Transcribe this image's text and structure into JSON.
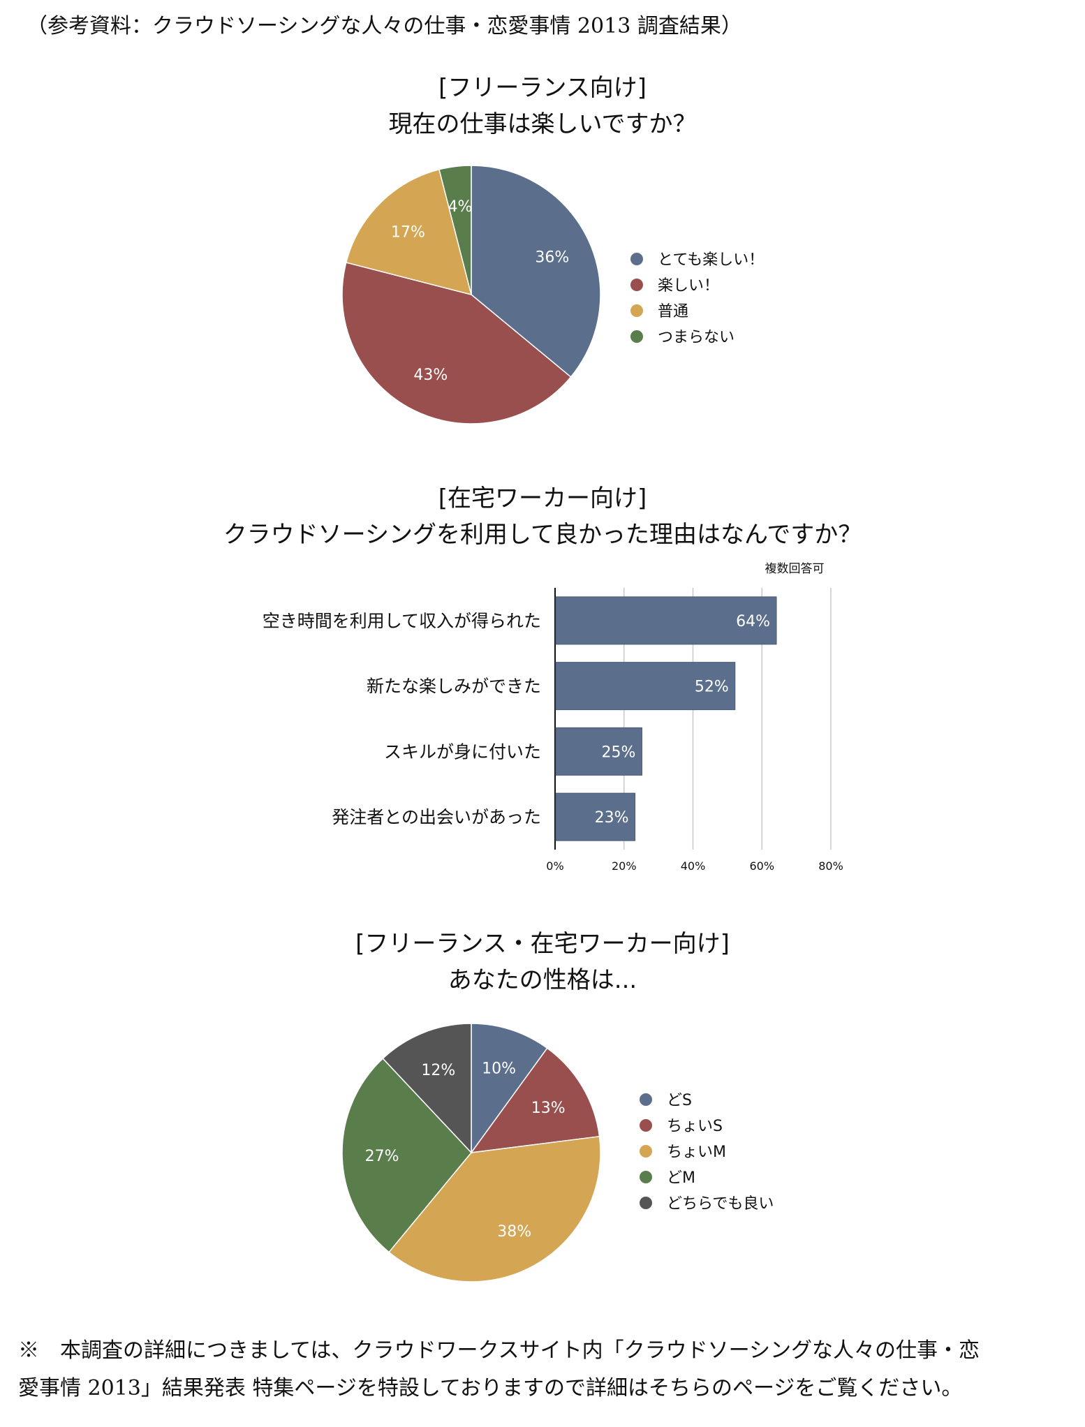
{
  "reference_title": "（参考資料：クラウドソーシングな人々の仕事・恋愛事情 2013 調査結果）",
  "chart_data": [
    {
      "type": "pie",
      "title_line1": "[フリーランス向け]",
      "title_line2": "現在の仕事は楽しいですか？",
      "categories": [
        "とても楽しい！",
        "楽しい！",
        "普通",
        "つまらない"
      ],
      "values": [
        36,
        43,
        17,
        4
      ],
      "labels": [
        "36%",
        "43%",
        "17%",
        "4%"
      ],
      "colors": [
        "#5b6e8c",
        "#9a4f4f",
        "#d4a552",
        "#5a7d4c"
      ],
      "legend": "right"
    },
    {
      "type": "bar",
      "orientation": "horizontal",
      "title_line1": "[在宅ワーカー向け]",
      "title_line2": "クラウドソーシングを利用して良かった理由はなんですか？",
      "note": "複数回答可",
      "categories": [
        "空き時間を利用して収入が得られた",
        "新たな楽しみができた",
        "スキルが身に付いた",
        "発注者との出会いがあった"
      ],
      "values": [
        64,
        52,
        25,
        23
      ],
      "labels": [
        "64%",
        "52%",
        "25%",
        "23%"
      ],
      "xlim": [
        0,
        80
      ],
      "xticks": [
        "0%",
        "20%",
        "40%",
        "60%",
        "80%"
      ],
      "grid": true,
      "color": "#5b6e8c"
    },
    {
      "type": "pie",
      "title_line1": "[フリーランス・在宅ワーカー向け]",
      "title_line2": "あなたの性格は...",
      "categories": [
        "どS",
        "ちょいS",
        "ちょいM",
        "どM",
        "どちらでも良い"
      ],
      "values": [
        10,
        13,
        38,
        27,
        12
      ],
      "labels": [
        "10%",
        "13%",
        "38%",
        "27%",
        "12%"
      ],
      "colors": [
        "#5b6e8c",
        "#9a4f4f",
        "#d4a552",
        "#5a7d4c",
        "#555555"
      ],
      "legend": "right"
    }
  ],
  "footnote_line1": "※　本調査の詳細につきましては、クラウドワークスサイト内「クラウドソーシングな人々の仕事・恋",
  "footnote_line2": "愛事情 2013」結果発表 特集ページを特設しておりますので詳細はそちらのページをご覧ください。"
}
